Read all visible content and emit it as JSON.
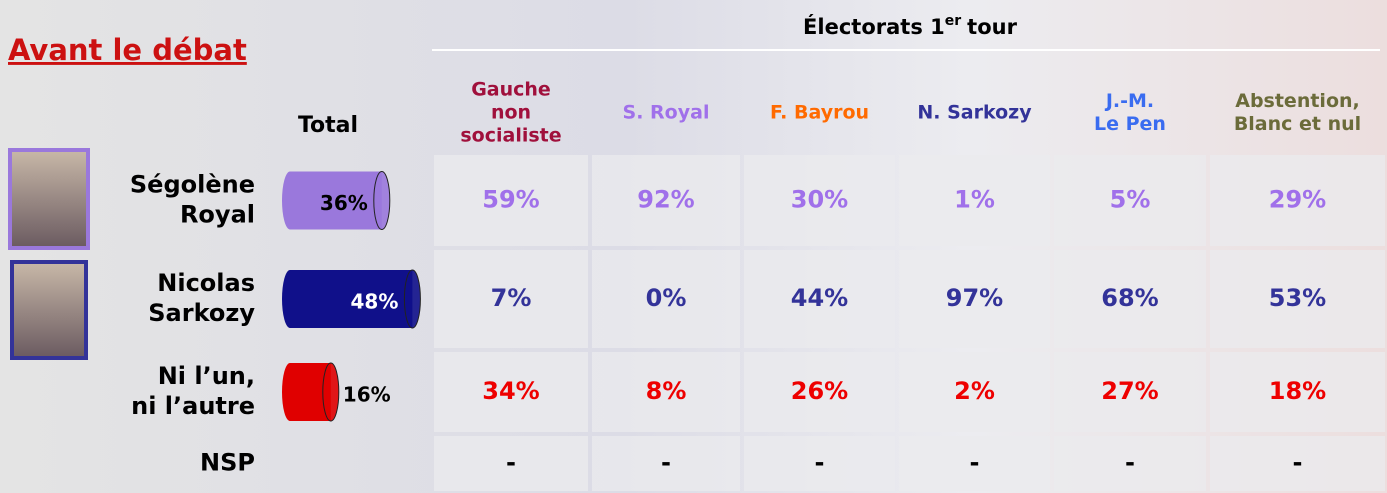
{
  "title": "Avant le débat",
  "heading": {
    "text": "Électorats 1",
    "sup": "er",
    "rest": "tour"
  },
  "total_header": "Total",
  "columns": [
    {
      "label": [
        "Gauche",
        "non",
        "socialiste"
      ],
      "color": "#a0103c"
    },
    {
      "label": [
        "S. Royal"
      ],
      "color": "#a070ea"
    },
    {
      "label": [
        "F. Bayrou"
      ],
      "color": "#ff6a00"
    },
    {
      "label": [
        "N. Sarkozy"
      ],
      "color": "#333399"
    },
    {
      "label": [
        "J.-M.",
        "Le Pen"
      ],
      "color": "#3a6cf0"
    },
    {
      "label": [
        "Abstention,",
        "Blanc et nul"
      ],
      "color": "#6b6b3a"
    }
  ],
  "rows": [
    {
      "label": [
        "Ségolène",
        "Royal"
      ],
      "color": "#a070ea",
      "bar_color": "#9a78dc",
      "total": {
        "value": 36,
        "label": "36%"
      },
      "values": [
        "59%",
        "92%",
        "30%",
        "1%",
        "5%",
        "29%"
      ]
    },
    {
      "label": [
        "Nicolas",
        "Sarkozy"
      ],
      "color": "#333399",
      "bar_color": "#10108a",
      "total": {
        "value": 48,
        "label": "48%"
      },
      "values": [
        "7%",
        "0%",
        "44%",
        "97%",
        "68%",
        "53%"
      ]
    },
    {
      "label": [
        "Ni l’un,",
        "ni l’autre"
      ],
      "color": "#ee0000",
      "bar_color": "#e00000",
      "total": {
        "value": 16,
        "label": "16%"
      },
      "values": [
        "34%",
        "8%",
        "26%",
        "2%",
        "27%",
        "18%"
      ]
    },
    {
      "label": [
        "NSP"
      ],
      "color": "#000000",
      "values": [
        "-",
        "-",
        "-",
        "-",
        "-",
        "-"
      ]
    }
  ]
}
